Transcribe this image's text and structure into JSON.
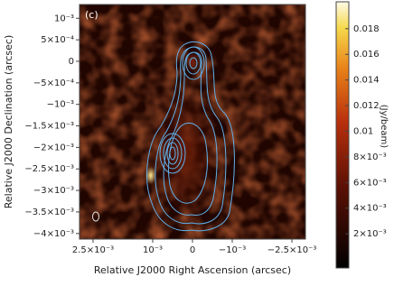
{
  "chart_data": {
    "type": "image",
    "panel_label": "(c)",
    "x_label": "Relative J2000 Right Ascension (arcsec)",
    "y_label": "Relative J2000 Declination (arcsec)",
    "colorbar_label": "(Jy/beam)",
    "xlim": [
      0.00284,
      -0.00284
    ],
    "ylim": [
      -0.00413,
      0.00132
    ],
    "clim": [
      -0.00067,
      0.0201
    ],
    "xticks": [
      {
        "value": 0.0025,
        "label": "2.5×10⁻³"
      },
      {
        "value": 0.001,
        "label": "10⁻³"
      },
      0,
      {
        "value": -0.001,
        "label": "−10⁻³"
      },
      {
        "value": -0.0025,
        "label": "−2.5×10⁻³"
      }
    ],
    "yticks": [
      {
        "value": 0.001,
        "label": "10⁻³"
      },
      {
        "value": 0.0005,
        "label": "5×10⁻⁴"
      },
      0,
      {
        "value": -0.0005,
        "label": "−5×10⁻⁴"
      },
      {
        "value": -0.001,
        "label": "−10⁻³"
      },
      {
        "value": -0.0015,
        "label": "−1.5×10⁻³"
      },
      {
        "value": -0.002,
        "label": "−2×10⁻³"
      },
      {
        "value": -0.0025,
        "label": "−2.5×10⁻³"
      },
      {
        "value": -0.003,
        "label": "−3×10⁻³"
      },
      {
        "value": -0.0035,
        "label": "−3.5×10⁻³"
      },
      {
        "value": -0.004,
        "label": "−4×10⁻³"
      }
    ],
    "cticks": [
      {
        "value": 0.002,
        "label": "2×10⁻³"
      },
      {
        "value": 0.004,
        "label": "4×10⁻³"
      },
      {
        "value": 0.006,
        "label": "6×10⁻³"
      },
      {
        "value": 0.008,
        "label": "8×10⁻³"
      },
      0.01,
      0.012,
      0.014,
      0.016,
      0.018
    ],
    "sources": [
      {
        "x": 0,
        "y": 0,
        "peak": 0.007
      },
      {
        "x": 0.00105,
        "y": -0.00265,
        "peak": 0.019
      }
    ]
  }
}
